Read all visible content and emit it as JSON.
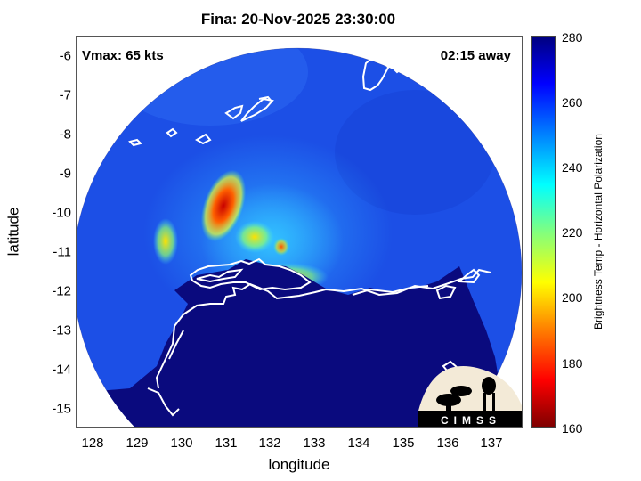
{
  "title": "Fina: 20-Nov-2025 23:30:00",
  "vmax": "Vmax: 65 kts",
  "away": "02:15 away",
  "xlabel": "longitude",
  "ylabel": "latitude",
  "x_ticks": [
    "128",
    "129",
    "130",
    "131",
    "132",
    "133",
    "134",
    "135",
    "136",
    "137"
  ],
  "y_ticks": [
    "-6",
    "-7",
    "-8",
    "-9",
    "-10",
    "-11",
    "-12",
    "-13",
    "-14",
    "-15"
  ],
  "colorbar": {
    "label": "Brightness Temp - Horizontal Polarization",
    "ticks": [
      "280",
      "260",
      "240",
      "220",
      "200",
      "180",
      "160"
    ],
    "range": [
      160,
      280
    ]
  },
  "logo_text": "CIMSS",
  "map": {
    "lon_range": [
      127.4,
      137.7
    ],
    "lat_range": [
      -15.4,
      -5.45
    ],
    "storm_center": {
      "lon": 131.9,
      "lat": -10.8
    }
  },
  "colors": {
    "ocean": "#1c4fe6",
    "land": "#0a0a7e",
    "coast": "#ffffff"
  }
}
